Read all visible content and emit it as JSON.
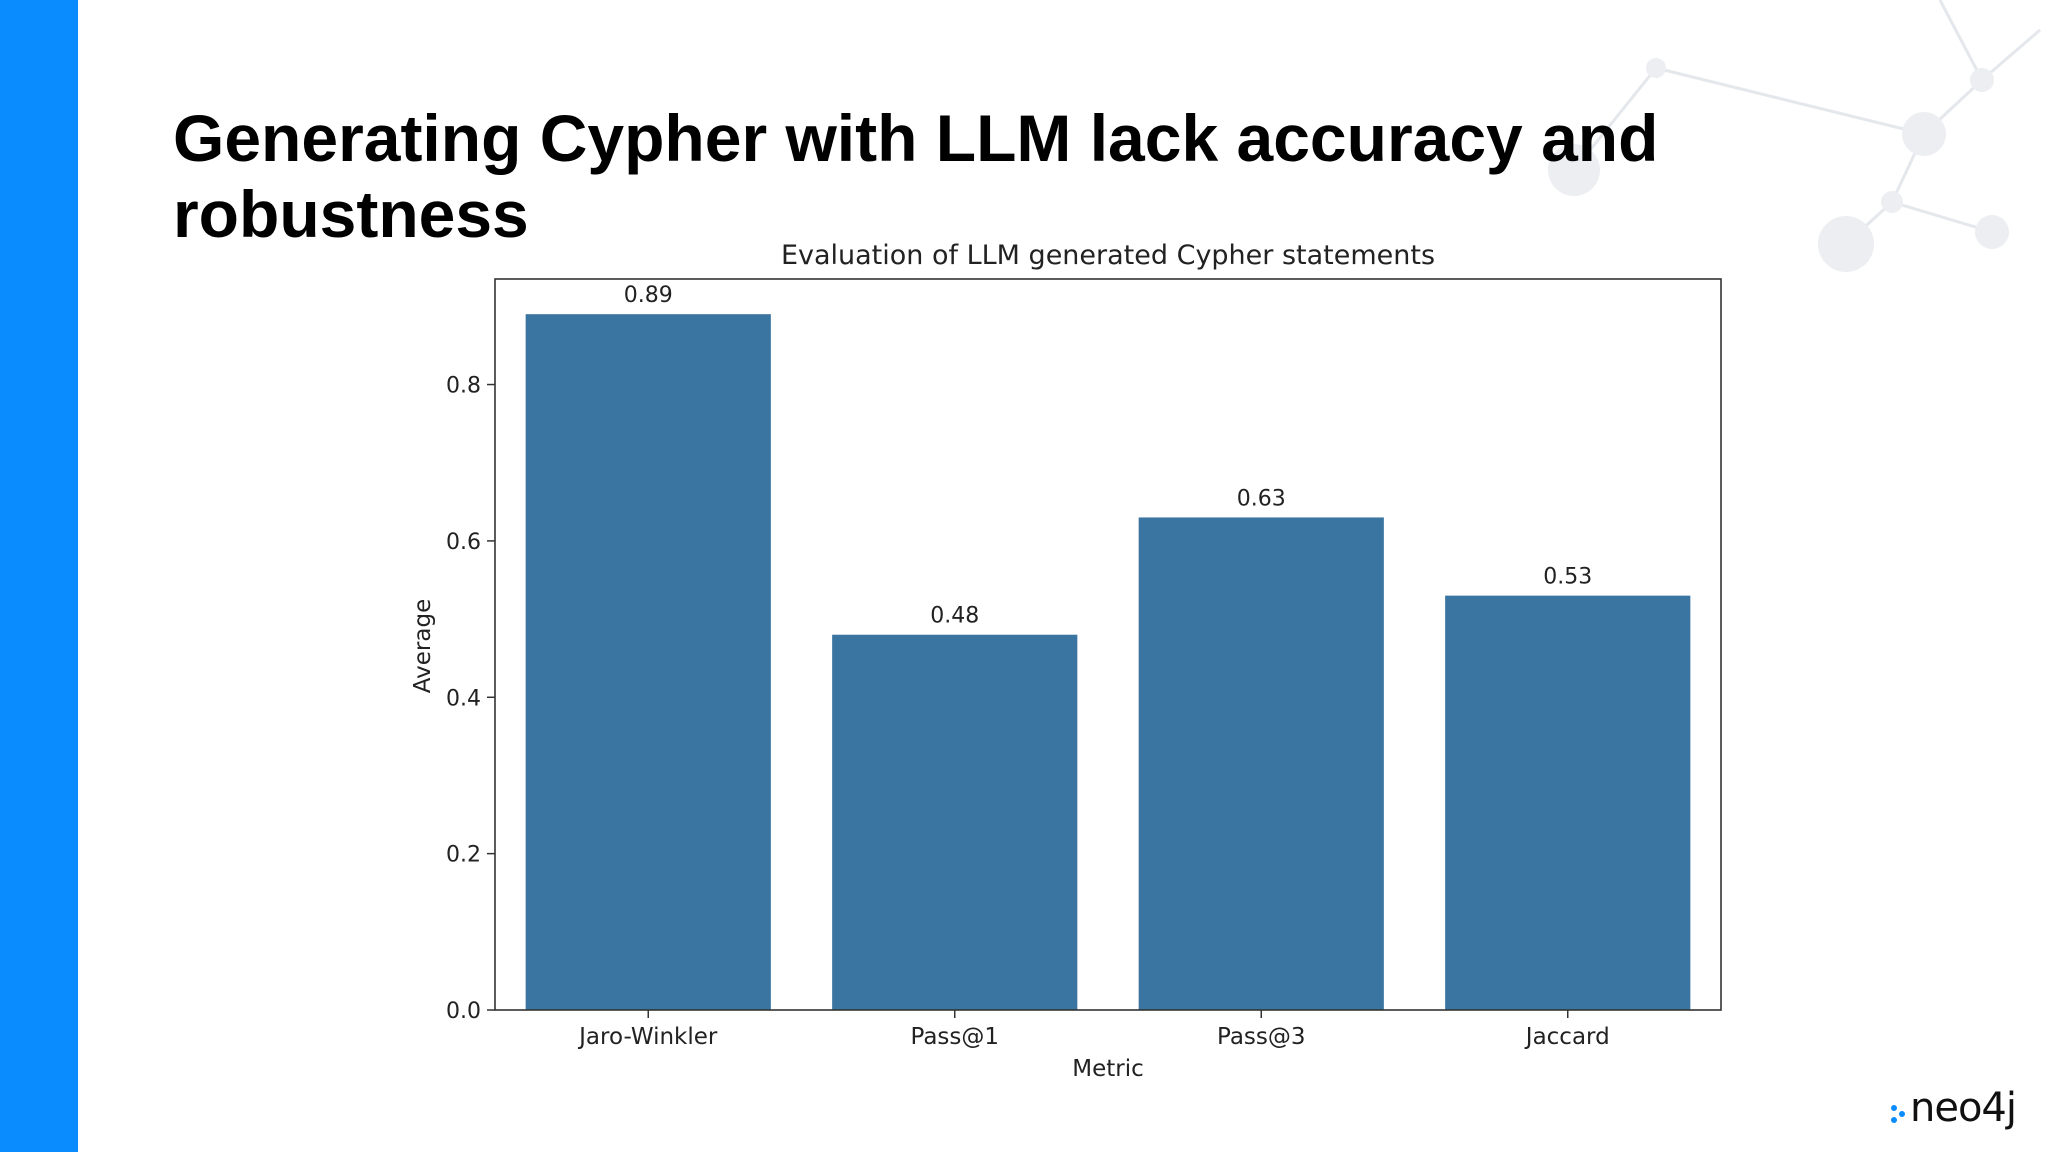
{
  "slide": {
    "title": "Generating Cypher with LLM lack accuracy and robustness",
    "accent_color": "#0a8cff",
    "logo_text": "neo4j",
    "logo_dot_color": "#0a8cff"
  },
  "chart_data": {
    "type": "bar",
    "title": "Evaluation of LLM generated Cypher statements",
    "xlabel": "Metric",
    "ylabel": "Average",
    "categories": [
      "Jaro-Winkler",
      "Pass@1",
      "Pass@3",
      "Jaccard"
    ],
    "values": [
      0.89,
      0.48,
      0.63,
      0.53
    ],
    "value_labels": [
      "0.89",
      "0.48",
      "0.63",
      "0.53"
    ],
    "ylim": [
      0,
      0.935
    ],
    "yticks": [
      0.0,
      0.2,
      0.4,
      0.6,
      0.8
    ],
    "ytick_labels": [
      "0.0",
      "0.2",
      "0.4",
      "0.6",
      "0.8"
    ],
    "bar_color": "#3a74a1",
    "grid": false,
    "legend": "none"
  }
}
